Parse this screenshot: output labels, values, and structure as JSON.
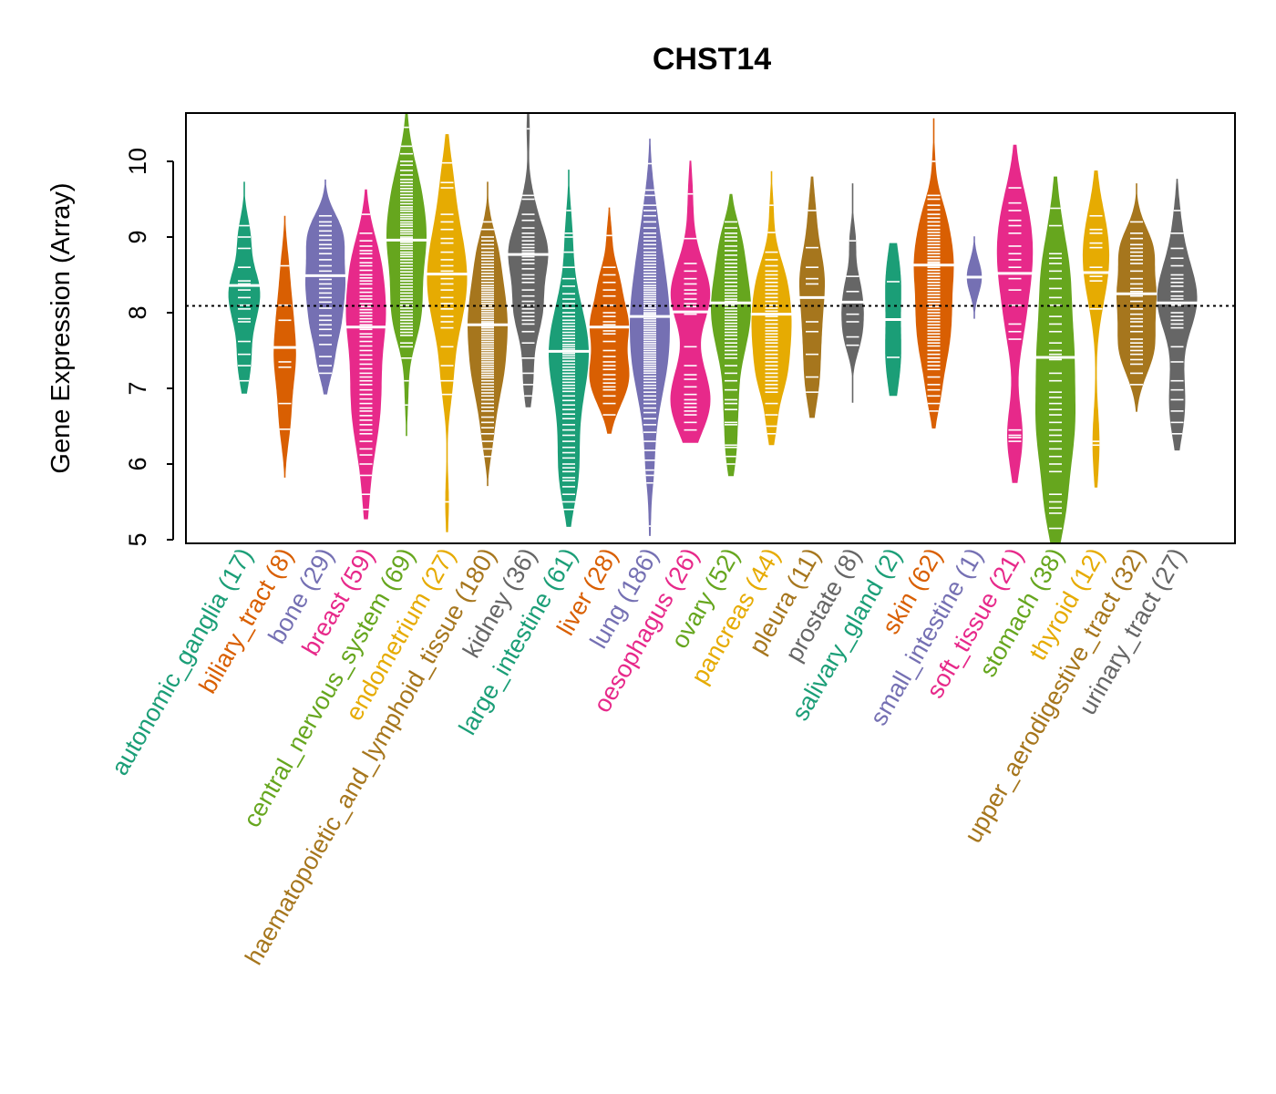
{
  "chart_data": {
    "type": "violin",
    "title": "CHST14",
    "xlabel": "",
    "ylabel": "Gene Expression (Array)",
    "ylim": [
      5,
      10.65
    ],
    "yticks": [
      5,
      6,
      7,
      8,
      9,
      10
    ],
    "reference_line": 8.09,
    "grid": false,
    "legend": "none",
    "palette": [
      "#1B9E77",
      "#D95F02",
      "#7570B3",
      "#E7298A",
      "#66A61E",
      "#E6AB02",
      "#A6761D",
      "#666666"
    ],
    "groups": [
      {
        "name": "autonomic_ganglia",
        "n": 17,
        "median": 8.36,
        "min": 6.93,
        "max": 9.73,
        "points": [
          9.15,
          9.0,
          8.85,
          8.6,
          8.42,
          8.38,
          8.36,
          8.3,
          8.2,
          8.1,
          8.05,
          7.92,
          7.88,
          7.62,
          7.45,
          7.3,
          7.1
        ]
      },
      {
        "name": "biliary_tract",
        "n": 8,
        "median": 7.54,
        "min": 5.82,
        "max": 9.28,
        "points": [
          8.62,
          8.1,
          7.9,
          7.54,
          7.35,
          7.28,
          6.8,
          6.46
        ]
      },
      {
        "name": "bone",
        "n": 29,
        "median": 8.49,
        "min": 6.92,
        "max": 9.76,
        "points": [
          9.28,
          9.2,
          9.15,
          9.08,
          9.02,
          8.96,
          8.9,
          8.85,
          8.78,
          8.7,
          8.62,
          8.55,
          8.49,
          8.44,
          8.38,
          8.32,
          8.26,
          8.2,
          8.14,
          8.06,
          7.96,
          7.9,
          7.84,
          7.78,
          7.7,
          7.58,
          7.42,
          7.3,
          7.2
        ]
      },
      {
        "name": "breast",
        "n": 59,
        "median": 7.81,
        "min": 5.27,
        "max": 9.63,
        "points": [
          9.3,
          9.05,
          8.95,
          8.88,
          8.82,
          8.78,
          8.72,
          8.66,
          8.62,
          8.56,
          8.5,
          8.46,
          8.42,
          8.38,
          8.32,
          8.27,
          8.22,
          8.18,
          8.12,
          8.08,
          8.04,
          8.0,
          7.96,
          7.92,
          7.88,
          7.84,
          7.81,
          7.78,
          7.72,
          7.68,
          7.62,
          7.56,
          7.5,
          7.44,
          7.38,
          7.32,
          7.26,
          7.2,
          7.15,
          7.1,
          7.05,
          6.98,
          6.92,
          6.86,
          6.8,
          6.74,
          6.7,
          6.64,
          6.58,
          6.52,
          6.45,
          6.4,
          6.3,
          6.2,
          6.12,
          6.0,
          5.85,
          5.6,
          5.4
        ]
      },
      {
        "name": "central_nervous_system",
        "n": 69,
        "median": 8.96,
        "min": 6.37,
        "max": 10.64,
        "points": [
          10.45,
          10.2,
          10.1,
          10.0,
          9.95,
          9.88,
          9.82,
          9.76,
          9.72,
          9.68,
          9.64,
          9.6,
          9.56,
          9.52,
          9.48,
          9.44,
          9.4,
          9.37,
          9.34,
          9.3,
          9.27,
          9.24,
          9.2,
          9.17,
          9.14,
          9.1,
          9.07,
          9.04,
          9.0,
          8.98,
          8.96,
          8.93,
          8.9,
          8.87,
          8.84,
          8.8,
          8.77,
          8.74,
          8.7,
          8.66,
          8.62,
          8.58,
          8.54,
          8.5,
          8.46,
          8.42,
          8.38,
          8.34,
          8.3,
          8.26,
          8.22,
          8.18,
          8.14,
          8.1,
          8.06,
          8.02,
          7.98,
          7.94,
          7.9,
          7.86,
          7.82,
          7.78,
          7.74,
          7.7,
          7.6,
          7.55,
          7.4,
          7.1,
          6.78
        ]
      },
      {
        "name": "endometrium",
        "n": 27,
        "median": 8.51,
        "min": 5.1,
        "max": 10.36,
        "points": [
          9.98,
          9.72,
          9.65,
          9.3,
          9.2,
          9.1,
          8.98,
          8.92,
          8.8,
          8.7,
          8.62,
          8.55,
          8.51,
          8.45,
          8.38,
          8.3,
          8.2,
          8.12,
          8.05,
          7.95,
          7.88,
          7.8,
          7.55,
          7.3,
          7.1,
          6.92,
          5.5
        ]
      },
      {
        "name": "haematopoietic_and_lymphoid_tissue",
        "n": 180,
        "median": 7.84,
        "min": 5.71,
        "max": 9.73,
        "points": [
          9.2,
          9.1,
          9.0,
          8.95,
          8.9,
          8.85,
          8.8,
          8.76,
          8.72,
          8.68,
          8.64,
          8.6,
          8.56,
          8.52,
          8.48,
          8.44,
          8.4,
          8.36,
          8.33,
          8.3,
          8.27,
          8.24,
          8.21,
          8.18,
          8.15,
          8.12,
          8.09,
          8.06,
          8.03,
          8.0,
          7.97,
          7.94,
          7.91,
          7.88,
          7.86,
          7.84,
          7.82,
          7.8,
          7.77,
          7.74,
          7.71,
          7.68,
          7.65,
          7.62,
          7.59,
          7.56,
          7.53,
          7.5,
          7.47,
          7.44,
          7.41,
          7.38,
          7.35,
          7.32,
          7.29,
          7.26,
          7.23,
          7.2,
          7.17,
          7.14,
          7.1,
          7.06,
          7.02,
          6.98,
          6.94,
          6.9,
          6.85,
          6.8,
          6.75,
          6.7,
          6.62,
          6.55,
          6.48,
          6.4,
          6.3,
          6.2,
          6.1
        ]
      },
      {
        "name": "kidney",
        "n": 36,
        "median": 8.77,
        "min": 6.75,
        "max": 10.64,
        "points": [
          10.43,
          9.55,
          9.5,
          9.3,
          9.22,
          9.12,
          9.05,
          9.0,
          8.95,
          8.9,
          8.86,
          8.82,
          8.79,
          8.77,
          8.74,
          8.7,
          8.65,
          8.58,
          8.5,
          8.45,
          8.4,
          8.3,
          8.22,
          8.15,
          8.1,
          8.05,
          8.0,
          7.95,
          7.9,
          7.85,
          7.75,
          7.6,
          7.4,
          7.2,
          7.05,
          6.9
        ]
      },
      {
        "name": "large_intestine",
        "n": 61,
        "median": 7.49,
        "min": 5.17,
        "max": 9.89,
        "points": [
          9.35,
          9.05,
          9.0,
          8.8,
          8.6,
          8.45,
          8.35,
          8.25,
          8.18,
          8.12,
          8.06,
          8.0,
          7.95,
          7.9,
          7.86,
          7.82,
          7.78,
          7.74,
          7.7,
          7.66,
          7.62,
          7.58,
          7.55,
          7.52,
          7.49,
          7.46,
          7.43,
          7.4,
          7.36,
          7.32,
          7.28,
          7.24,
          7.2,
          7.16,
          7.12,
          7.08,
          7.04,
          7.0,
          6.96,
          6.9,
          6.84,
          6.78,
          6.72,
          6.66,
          6.6,
          6.52,
          6.45,
          6.38,
          6.3,
          6.22,
          6.15,
          6.08,
          6.0,
          5.95,
          5.9,
          5.82,
          5.78,
          5.7,
          5.6,
          5.5,
          5.4
        ]
      },
      {
        "name": "liver",
        "n": 28,
        "median": 7.81,
        "min": 6.4,
        "max": 9.39,
        "points": [
          9.02,
          8.6,
          8.5,
          8.4,
          8.3,
          8.22,
          8.1,
          8.0,
          7.95,
          7.88,
          7.84,
          7.81,
          7.76,
          7.72,
          7.62,
          7.5,
          7.42,
          7.35,
          7.3,
          7.25,
          7.18,
          7.12,
          7.07,
          7.02,
          6.98,
          6.9,
          6.8,
          6.65
        ]
      },
      {
        "name": "lung",
        "n": 186,
        "median": 7.95,
        "min": 5.05,
        "max": 10.3,
        "points": [
          9.97,
          9.62,
          9.55,
          9.42,
          9.35,
          9.28,
          9.2,
          9.12,
          9.05,
          9.0,
          8.95,
          8.9,
          8.85,
          8.8,
          8.76,
          8.72,
          8.68,
          8.64,
          8.6,
          8.56,
          8.52,
          8.48,
          8.44,
          8.4,
          8.36,
          8.33,
          8.3,
          8.27,
          8.24,
          8.21,
          8.18,
          8.15,
          8.12,
          8.09,
          8.06,
          8.03,
          8.0,
          7.98,
          7.95,
          7.92,
          7.89,
          7.86,
          7.83,
          7.8,
          7.77,
          7.74,
          7.71,
          7.68,
          7.65,
          7.62,
          7.59,
          7.56,
          7.53,
          7.5,
          7.47,
          7.44,
          7.41,
          7.38,
          7.35,
          7.32,
          7.29,
          7.26,
          7.23,
          7.2,
          7.16,
          7.12,
          7.08,
          7.04,
          7.0,
          6.95,
          6.9,
          6.85,
          6.8,
          6.74,
          6.68,
          6.6,
          6.52,
          6.42,
          6.3,
          6.18,
          6.05,
          5.92,
          5.85,
          5.75,
          5.18
        ]
      },
      {
        "name": "oesophagus",
        "n": 26,
        "median": 8.01,
        "min": 6.28,
        "max": 10.01,
        "points": [
          9.57,
          8.98,
          8.65,
          8.55,
          8.45,
          8.38,
          8.3,
          8.25,
          8.18,
          8.12,
          8.08,
          8.01,
          7.98,
          7.55,
          7.3,
          7.18,
          7.12,
          7.02,
          6.92,
          6.85,
          6.8,
          6.75,
          6.7,
          6.65,
          6.55,
          6.45
        ]
      },
      {
        "name": "ovary",
        "n": 52,
        "median": 8.13,
        "min": 5.84,
        "max": 9.57,
        "points": [
          9.2,
          9.12,
          9.05,
          9.0,
          8.95,
          8.88,
          8.82,
          8.76,
          8.7,
          8.65,
          8.6,
          8.55,
          8.5,
          8.45,
          8.4,
          8.35,
          8.3,
          8.26,
          8.22,
          8.18,
          8.15,
          8.13,
          8.1,
          8.06,
          8.02,
          7.98,
          7.94,
          7.9,
          7.86,
          7.82,
          7.78,
          7.74,
          7.7,
          7.65,
          7.6,
          7.55,
          7.5,
          7.45,
          7.4,
          7.3,
          7.2,
          7.1,
          6.98,
          6.85,
          6.8,
          6.72,
          6.55,
          6.52,
          6.25,
          6.22,
          6.1,
          6.0
        ]
      },
      {
        "name": "pancreas",
        "n": 44,
        "median": 7.98,
        "min": 6.25,
        "max": 9.87,
        "points": [
          9.42,
          9.06,
          8.8,
          8.7,
          8.62,
          8.55,
          8.5,
          8.45,
          8.4,
          8.35,
          8.3,
          8.25,
          8.2,
          8.15,
          8.1,
          8.06,
          8.02,
          7.98,
          7.95,
          7.9,
          7.85,
          7.8,
          7.76,
          7.72,
          7.68,
          7.64,
          7.6,
          7.55,
          7.5,
          7.45,
          7.4,
          7.35,
          7.3,
          7.25,
          7.2,
          7.15,
          7.1,
          7.05,
          7.0,
          6.95,
          6.8,
          6.65,
          6.5,
          6.4
        ]
      },
      {
        "name": "pleura",
        "n": 11,
        "median": 8.2,
        "min": 6.61,
        "max": 9.8,
        "points": [
          9.35,
          8.86,
          8.6,
          8.45,
          8.38,
          8.2,
          7.88,
          7.75,
          7.45,
          7.15,
          6.95
        ]
      },
      {
        "name": "prostate",
        "n": 8,
        "median": 8.14,
        "min": 6.81,
        "max": 9.71,
        "points": [
          8.95,
          8.48,
          8.28,
          8.14,
          7.98,
          7.88,
          7.68,
          7.57
        ]
      },
      {
        "name": "salivary_gland",
        "n": 2,
        "median": 7.91,
        "min": 6.9,
        "max": 8.92,
        "points": [
          8.41,
          7.41
        ]
      },
      {
        "name": "skin",
        "n": 62,
        "median": 8.63,
        "min": 6.47,
        "max": 10.57,
        "points": [
          10.0,
          9.55,
          9.5,
          9.42,
          9.36,
          9.3,
          9.25,
          9.2,
          9.15,
          9.1,
          9.06,
          9.02,
          8.98,
          8.94,
          8.9,
          8.86,
          8.82,
          8.78,
          8.74,
          8.7,
          8.67,
          8.65,
          8.63,
          8.6,
          8.56,
          8.52,
          8.48,
          8.44,
          8.4,
          8.36,
          8.32,
          8.28,
          8.24,
          8.2,
          8.16,
          8.12,
          8.08,
          8.04,
          8.0,
          7.96,
          7.92,
          7.88,
          7.84,
          7.8,
          7.76,
          7.72,
          7.68,
          7.64,
          7.6,
          7.56,
          7.5,
          7.45,
          7.4,
          7.35,
          7.3,
          7.25,
          7.15,
          7.05,
          6.98,
          6.9,
          6.8,
          6.7
        ]
      },
      {
        "name": "small_intestine",
        "n": 1,
        "median": 8.47,
        "min": 7.92,
        "max": 9.01,
        "points": [
          8.47
        ]
      },
      {
        "name": "soft_tissue",
        "n": 21,
        "median": 8.52,
        "min": 5.75,
        "max": 10.22,
        "points": [
          9.65,
          9.45,
          9.35,
          9.22,
          9.15,
          9.05,
          8.88,
          8.78,
          8.7,
          8.6,
          8.52,
          8.45,
          8.3,
          8.1,
          7.85,
          7.75,
          7.65,
          6.45,
          6.38,
          6.35,
          6.3
        ]
      },
      {
        "name": "stomach",
        "n": 38,
        "median": 7.41,
        "min": 4.95,
        "max": 9.8,
        "points": [
          9.38,
          9.15,
          8.78,
          8.72,
          8.65,
          8.55,
          8.45,
          8.32,
          8.2,
          8.1,
          7.95,
          7.85,
          7.75,
          7.6,
          7.5,
          7.45,
          7.41,
          7.38,
          7.2,
          7.1,
          6.95,
          6.88,
          6.8,
          6.72,
          6.65,
          6.55,
          6.45,
          6.38,
          6.3,
          6.2,
          6.1,
          6.0,
          5.9,
          5.6,
          5.5,
          5.42,
          5.35,
          5.15
        ]
      },
      {
        "name": "thyroid",
        "n": 12,
        "median": 8.53,
        "min": 5.69,
        "max": 9.88,
        "points": [
          9.28,
          9.1,
          9.05,
          8.92,
          8.86,
          8.6,
          8.53,
          8.48,
          8.42,
          8.05,
          6.3,
          6.25
        ]
      },
      {
        "name": "upper_aerodigestive_tract",
        "n": 32,
        "median": 8.25,
        "min": 6.69,
        "max": 9.71,
        "points": [
          9.2,
          9.05,
          8.98,
          8.9,
          8.85,
          8.8,
          8.75,
          8.7,
          8.65,
          8.55,
          8.45,
          8.38,
          8.32,
          8.28,
          8.25,
          8.22,
          8.15,
          8.05,
          7.98,
          7.92,
          7.88,
          7.82,
          7.75,
          7.65,
          7.6,
          7.55,
          7.5,
          7.45,
          7.38,
          7.32,
          7.2,
          7.05
        ]
      },
      {
        "name": "urinary_tract",
        "n": 27,
        "median": 8.13,
        "min": 6.18,
        "max": 9.77,
        "points": [
          9.35,
          9.05,
          8.85,
          8.72,
          8.62,
          8.5,
          8.45,
          8.4,
          8.35,
          8.28,
          8.22,
          8.18,
          8.13,
          8.1,
          8.0,
          7.95,
          7.9,
          7.85,
          7.8,
          7.55,
          7.35,
          7.1,
          6.98,
          6.85,
          6.7,
          6.55,
          6.4
        ]
      }
    ]
  }
}
